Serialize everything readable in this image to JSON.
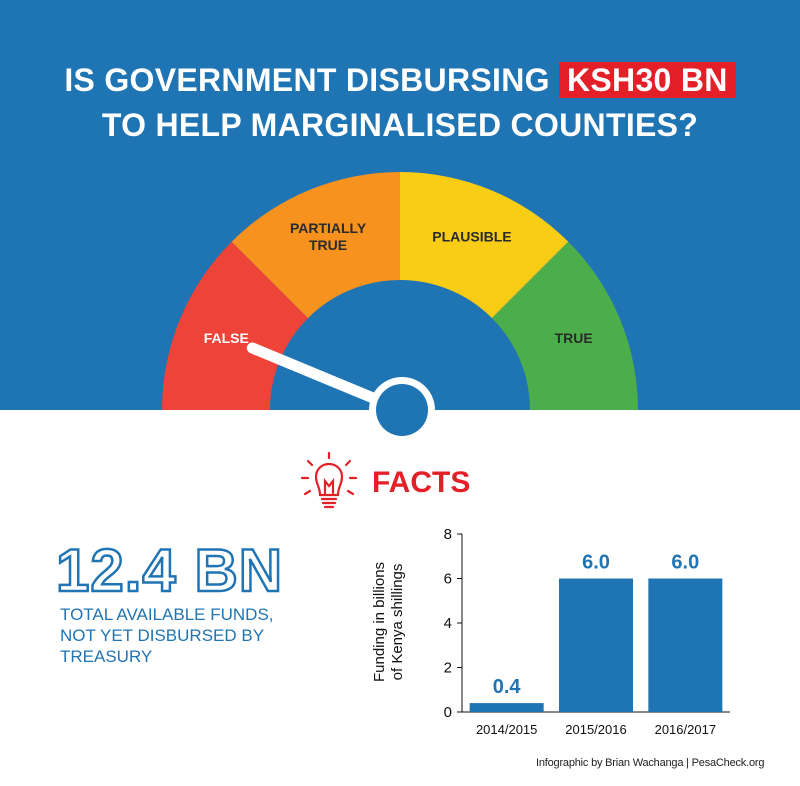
{
  "header": {
    "title_line1_pre": "IS GOVERNMENT DISBURSING ",
    "title_highlight": "KSH30 BN",
    "title_line2": "TO HELP MARGINALISED COUNTIES?"
  },
  "gauge": {
    "segments": [
      {
        "label_lines": [
          "FALSE"
        ],
        "color": "#ee4338"
      },
      {
        "label_lines": [
          "PARTIALLY",
          "TRUE"
        ],
        "color": "#f7921e"
      },
      {
        "label_lines": [
          "PLAUSIBLE"
        ],
        "color": "#f9cc16"
      },
      {
        "label_lines": [
          "TRUE"
        ],
        "color": "#4cae4a"
      }
    ],
    "verdict": "FALSE"
  },
  "facts": {
    "heading": "FACTS",
    "icon": "lightbulb-icon",
    "amount": "12.4 BN",
    "description_lines": [
      "TOTAL AVAILABLE FUNDS,",
      "NOT YET DISBURSED BY",
      "TREASURY"
    ]
  },
  "chart_data": {
    "type": "bar",
    "categories": [
      "2014/2015",
      "2015/2016",
      "2016/2017"
    ],
    "values": [
      0.4,
      6.0,
      6.0
    ],
    "data_labels": [
      "0.4",
      "6.0",
      "6.0"
    ],
    "ylabel_lines": [
      "Funding in billions",
      "of Kenya shillings"
    ],
    "ylim": [
      0,
      8
    ],
    "yticks": [
      0,
      2,
      4,
      6,
      8
    ],
    "bar_color": "#1f74b3",
    "grid": false
  },
  "credit": "Infographic by Brian Wachanga | PesaCheck.org",
  "colors": {
    "blue": "#1f74b3",
    "red": "#e32028"
  }
}
